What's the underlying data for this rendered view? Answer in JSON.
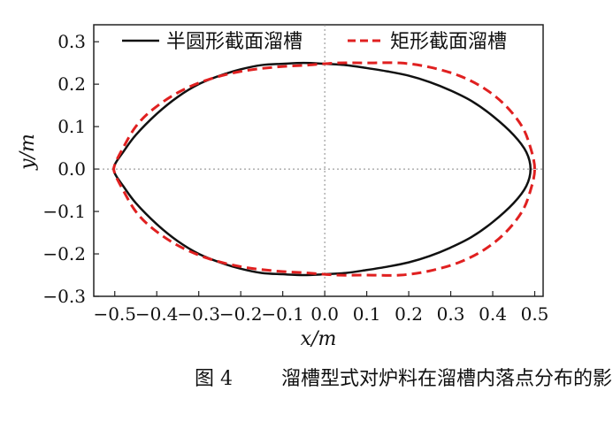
{
  "chart_data": {
    "type": "line",
    "title": "",
    "xlabel": "x/m",
    "ylabel": "y/m",
    "xlim": [
      -0.55,
      0.52
    ],
    "ylim": [
      -0.3,
      0.34
    ],
    "xticks": [
      -0.5,
      -0.4,
      -0.3,
      -0.2,
      -0.1,
      0.0,
      0.1,
      0.2,
      0.3,
      0.4,
      0.5
    ],
    "xtick_labels": [
      "−0.5",
      "−0.4",
      "−0.3",
      "−0.2",
      "−0.1",
      "0.0",
      "0.1",
      "0.2",
      "0.3",
      "0.4",
      "0.5"
    ],
    "yticks": [
      -0.3,
      -0.2,
      -0.1,
      0.0,
      0.1,
      0.2,
      0.3
    ],
    "ytick_labels": [
      "−0.3",
      "−0.2",
      "−0.1",
      "0.0",
      "0.1",
      "0.2",
      "0.3"
    ],
    "grid": false,
    "reference_lines": {
      "x": 0.0,
      "y": 0.0,
      "style": "dotted"
    },
    "legend": {
      "placement": "top",
      "orientation": "horizontal"
    },
    "series": [
      {
        "name": "半圆形截面溜槽",
        "color": "#111111",
        "dash": "solid",
        "x": [
          0.49,
          0.48,
          0.45,
          0.4,
          0.35,
          0.3,
          0.25,
          0.2,
          0.15,
          0.1,
          0.05,
          0.0,
          -0.05,
          -0.1,
          -0.15,
          -0.2,
          -0.25,
          -0.3,
          -0.35,
          -0.4,
          -0.45,
          -0.48,
          -0.5,
          -0.5,
          -0.48,
          -0.45,
          -0.4,
          -0.35,
          -0.3,
          -0.25,
          -0.2,
          -0.15,
          -0.1,
          -0.05,
          0.0,
          0.05,
          0.1,
          0.15,
          0.2,
          0.25,
          0.3,
          0.35,
          0.4,
          0.45,
          0.48,
          0.49
        ],
        "y": [
          0.0,
          0.04,
          0.08,
          0.125,
          0.16,
          0.185,
          0.205,
          0.22,
          0.23,
          0.238,
          0.245,
          0.248,
          0.25,
          0.248,
          0.245,
          0.235,
          0.22,
          0.2,
          0.17,
          0.13,
          0.08,
          0.04,
          0.01,
          -0.01,
          -0.04,
          -0.08,
          -0.13,
          -0.17,
          -0.2,
          -0.22,
          -0.235,
          -0.245,
          -0.248,
          -0.25,
          -0.248,
          -0.245,
          -0.238,
          -0.23,
          -0.22,
          -0.205,
          -0.185,
          -0.16,
          -0.125,
          -0.08,
          -0.04,
          0.0
        ]
      },
      {
        "name": "矩形截面溜槽",
        "color": "#e02020",
        "dash": "dashed",
        "x": [
          0.5,
          0.49,
          0.47,
          0.43,
          0.38,
          0.32,
          0.25,
          0.18,
          0.1,
          0.03,
          -0.04,
          -0.12,
          -0.2,
          -0.28,
          -0.35,
          -0.41,
          -0.45,
          -0.48,
          -0.5,
          -0.5,
          -0.48,
          -0.45,
          -0.41,
          -0.35,
          -0.28,
          -0.2,
          -0.12,
          -0.04,
          0.03,
          0.1,
          0.18,
          0.25,
          0.32,
          0.38,
          0.43,
          0.47,
          0.49,
          0.5
        ],
        "y": [
          0.0,
          0.05,
          0.1,
          0.15,
          0.19,
          0.22,
          0.24,
          0.25,
          0.25,
          0.25,
          0.245,
          0.24,
          0.23,
          0.21,
          0.18,
          0.14,
          0.1,
          0.05,
          0.01,
          -0.01,
          -0.05,
          -0.1,
          -0.14,
          -0.18,
          -0.21,
          -0.23,
          -0.24,
          -0.245,
          -0.25,
          -0.25,
          -0.25,
          -0.24,
          -0.22,
          -0.19,
          -0.15,
          -0.1,
          -0.05,
          0.0
        ]
      }
    ]
  },
  "caption": {
    "number": "图 4",
    "text": "溜槽型式对炉料在溜槽内落点分布的影响"
  }
}
